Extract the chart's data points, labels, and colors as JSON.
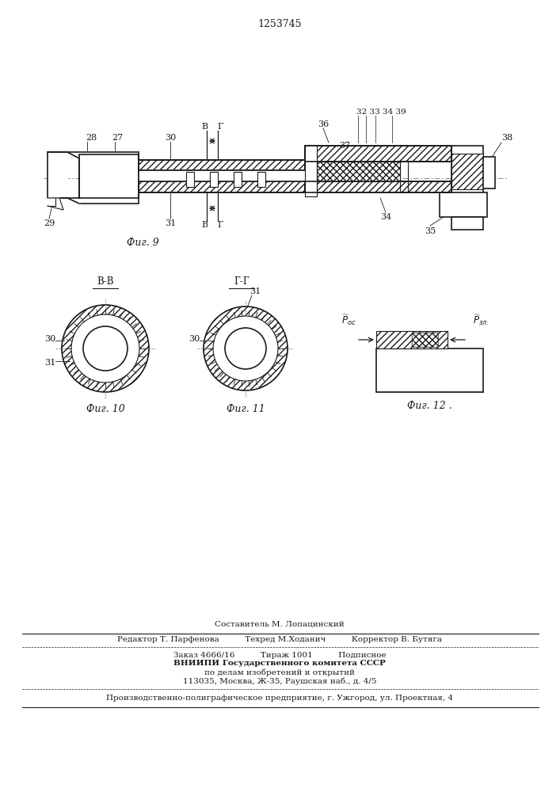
{
  "title": "1253745",
  "bg_color": "#ffffff",
  "line_color": "#1a1a1a",
  "fig_labels": {
    "fig9": "Фиг. 9",
    "fig10": "Фиг. 10",
    "fig11": "Фиг. 11",
    "fig12": "Фиг. 12 ."
  },
  "footer_lines": [
    "Составитель М. Лопацинский",
    "Редактор Т. Парфенова          Техред М.Ходанич          Корректор В. Бутяга",
    "Заказ 4666/16          Тираж 1001          Подписное",
    "ВНИИПИ Государственного комитета СССР",
    "по делам изобретений и открытий",
    "113035, Москва, Ж-35, Раушская наб., д. 4/5",
    "Производственно-полиграфическое предприятие, г. Ужгород, ул. Проектная, 4"
  ]
}
